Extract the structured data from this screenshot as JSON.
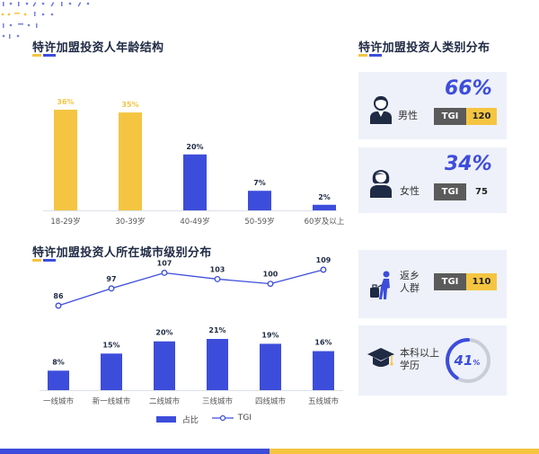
{
  "colors": {
    "blue": "#3d4ddb",
    "yellow": "#f5c542",
    "gray": "#5b5b5b",
    "card_bg": "#eef1f9"
  },
  "age_section": {
    "title": "特许加盟投资人年龄结构"
  },
  "gender_section": {
    "title": "特许加盟投资人类别分布"
  },
  "city_section": {
    "title": "特许加盟投资人所在城市级别分布"
  },
  "cards": {
    "male": {
      "label": "男性",
      "pct": "66%",
      "tgi_key": "TGI",
      "tgi_value": "120",
      "icon": "male-person-icon",
      "value_color": "#f5c542"
    },
    "female": {
      "label": "女性",
      "pct": "34%",
      "tgi_key": "TGI",
      "tgi_value": "75",
      "icon": "female-person-icon",
      "value_color": "#eef1f9"
    },
    "return": {
      "label_line1": "返乡",
      "label_line2": "人群",
      "tgi_key": "TGI",
      "tgi_value": "110",
      "icon": "traveler-icon",
      "value_color": "#f5c542"
    },
    "edu": {
      "label_line1": "本科以上",
      "label_line2": "学历",
      "pct_num": "41",
      "pct_sym": "%",
      "icon": "graduation-cap-icon"
    }
  },
  "legend": {
    "bar_label": "占比",
    "line_label": "TGI"
  },
  "chart_data": [
    {
      "type": "bar",
      "title": "特许加盟投资人年龄结构",
      "categories": [
        "18-29岁",
        "30-39岁",
        "40-49岁",
        "50-59岁",
        "60岁及以上"
      ],
      "values": [
        36,
        35,
        20,
        7,
        2
      ],
      "labels": [
        "36%",
        "35%",
        "20%",
        "7%",
        "2%"
      ],
      "colors": [
        "#f5c542",
        "#f5c542",
        "#3d4ddb",
        "#3d4ddb",
        "#3d4ddb"
      ],
      "ylim": [
        0,
        36
      ]
    },
    {
      "type": "bar",
      "title": "特许加盟投资人所在城市级别分布",
      "categories": [
        "一线城市",
        "新一线城市",
        "二线城市",
        "三线城市",
        "四线城市",
        "五线城市"
      ],
      "series": [
        {
          "name": "占比",
          "type": "bar",
          "values": [
            8,
            15,
            20,
            21,
            19,
            16
          ],
          "labels": [
            "8%",
            "15%",
            "20%",
            "21%",
            "19%",
            "16%"
          ]
        },
        {
          "name": "TGI",
          "type": "line",
          "values": [
            86,
            97,
            107,
            103,
            100,
            109
          ]
        }
      ],
      "ylim_bar": [
        0,
        21
      ],
      "ylim_line": [
        86,
        109
      ]
    },
    {
      "type": "pie",
      "values": [
        41
      ],
      "label": "41%"
    }
  ]
}
